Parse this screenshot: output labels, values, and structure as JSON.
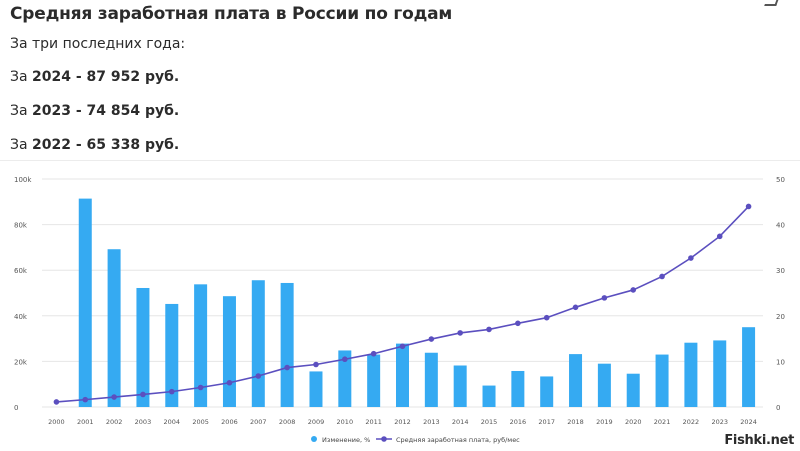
{
  "header": {
    "title": "Средняя заработная плата в России по годам"
  },
  "intro": "За три последних года:",
  "stats": [
    {
      "prefix": "За ",
      "value": "2024 - 87 952 руб."
    },
    {
      "prefix": "За ",
      "value": "2023 - 74 854 руб."
    },
    {
      "prefix": "За ",
      "value": "2022 - 65 338 руб."
    }
  ],
  "watermark": "Fishki.net",
  "chart_data": {
    "type": "bar",
    "categories": [
      "2000",
      "2001",
      "2002",
      "2003",
      "2004",
      "2005",
      "2006",
      "2007",
      "2008",
      "2009",
      "2010",
      "2011",
      "2012",
      "2013",
      "2014",
      "2015",
      "2016",
      "2017",
      "2018",
      "2019",
      "2020",
      "2021",
      "2022",
      "2023",
      "2024"
    ],
    "series": [
      {
        "name": "Изменение, %",
        "type": "bar",
        "axis": "right",
        "color": "#35aaf2",
        "values": [
          null,
          45.7,
          34.6,
          26.1,
          22.6,
          26.9,
          24.3,
          27.8,
          27.2,
          7.8,
          12.4,
          11.5,
          13.9,
          11.9,
          9.1,
          4.7,
          7.9,
          6.7,
          11.6,
          9.5,
          7.3,
          11.5,
          14.1,
          14.6,
          17.5
        ]
      },
      {
        "name": "Средняя заработная плата, руб/мес",
        "type": "line",
        "axis": "left",
        "color": "#5b4fbf",
        "values": [
          2223,
          3240,
          4360,
          5499,
          6740,
          8555,
          10634,
          13593,
          17290,
          18638,
          20952,
          23369,
          26629,
          29792,
          32495,
          34030,
          36709,
          39167,
          43724,
          47867,
          51344,
          57244,
          65338,
          74854,
          87952
        ]
      }
    ],
    "y_left": {
      "ticks": [
        0,
        20000,
        40000,
        60000,
        80000,
        100000
      ],
      "tick_labels": [
        "0",
        "20k",
        "40k",
        "60k",
        "80k",
        "100k"
      ],
      "range": [
        0,
        100000
      ]
    },
    "y_right": {
      "ticks": [
        0,
        10,
        20,
        30,
        40,
        50
      ],
      "tick_labels": [
        "0",
        "10",
        "20",
        "30",
        "40",
        "50"
      ],
      "range": [
        0,
        50
      ]
    },
    "grid": true,
    "legend": "bottom-center"
  }
}
